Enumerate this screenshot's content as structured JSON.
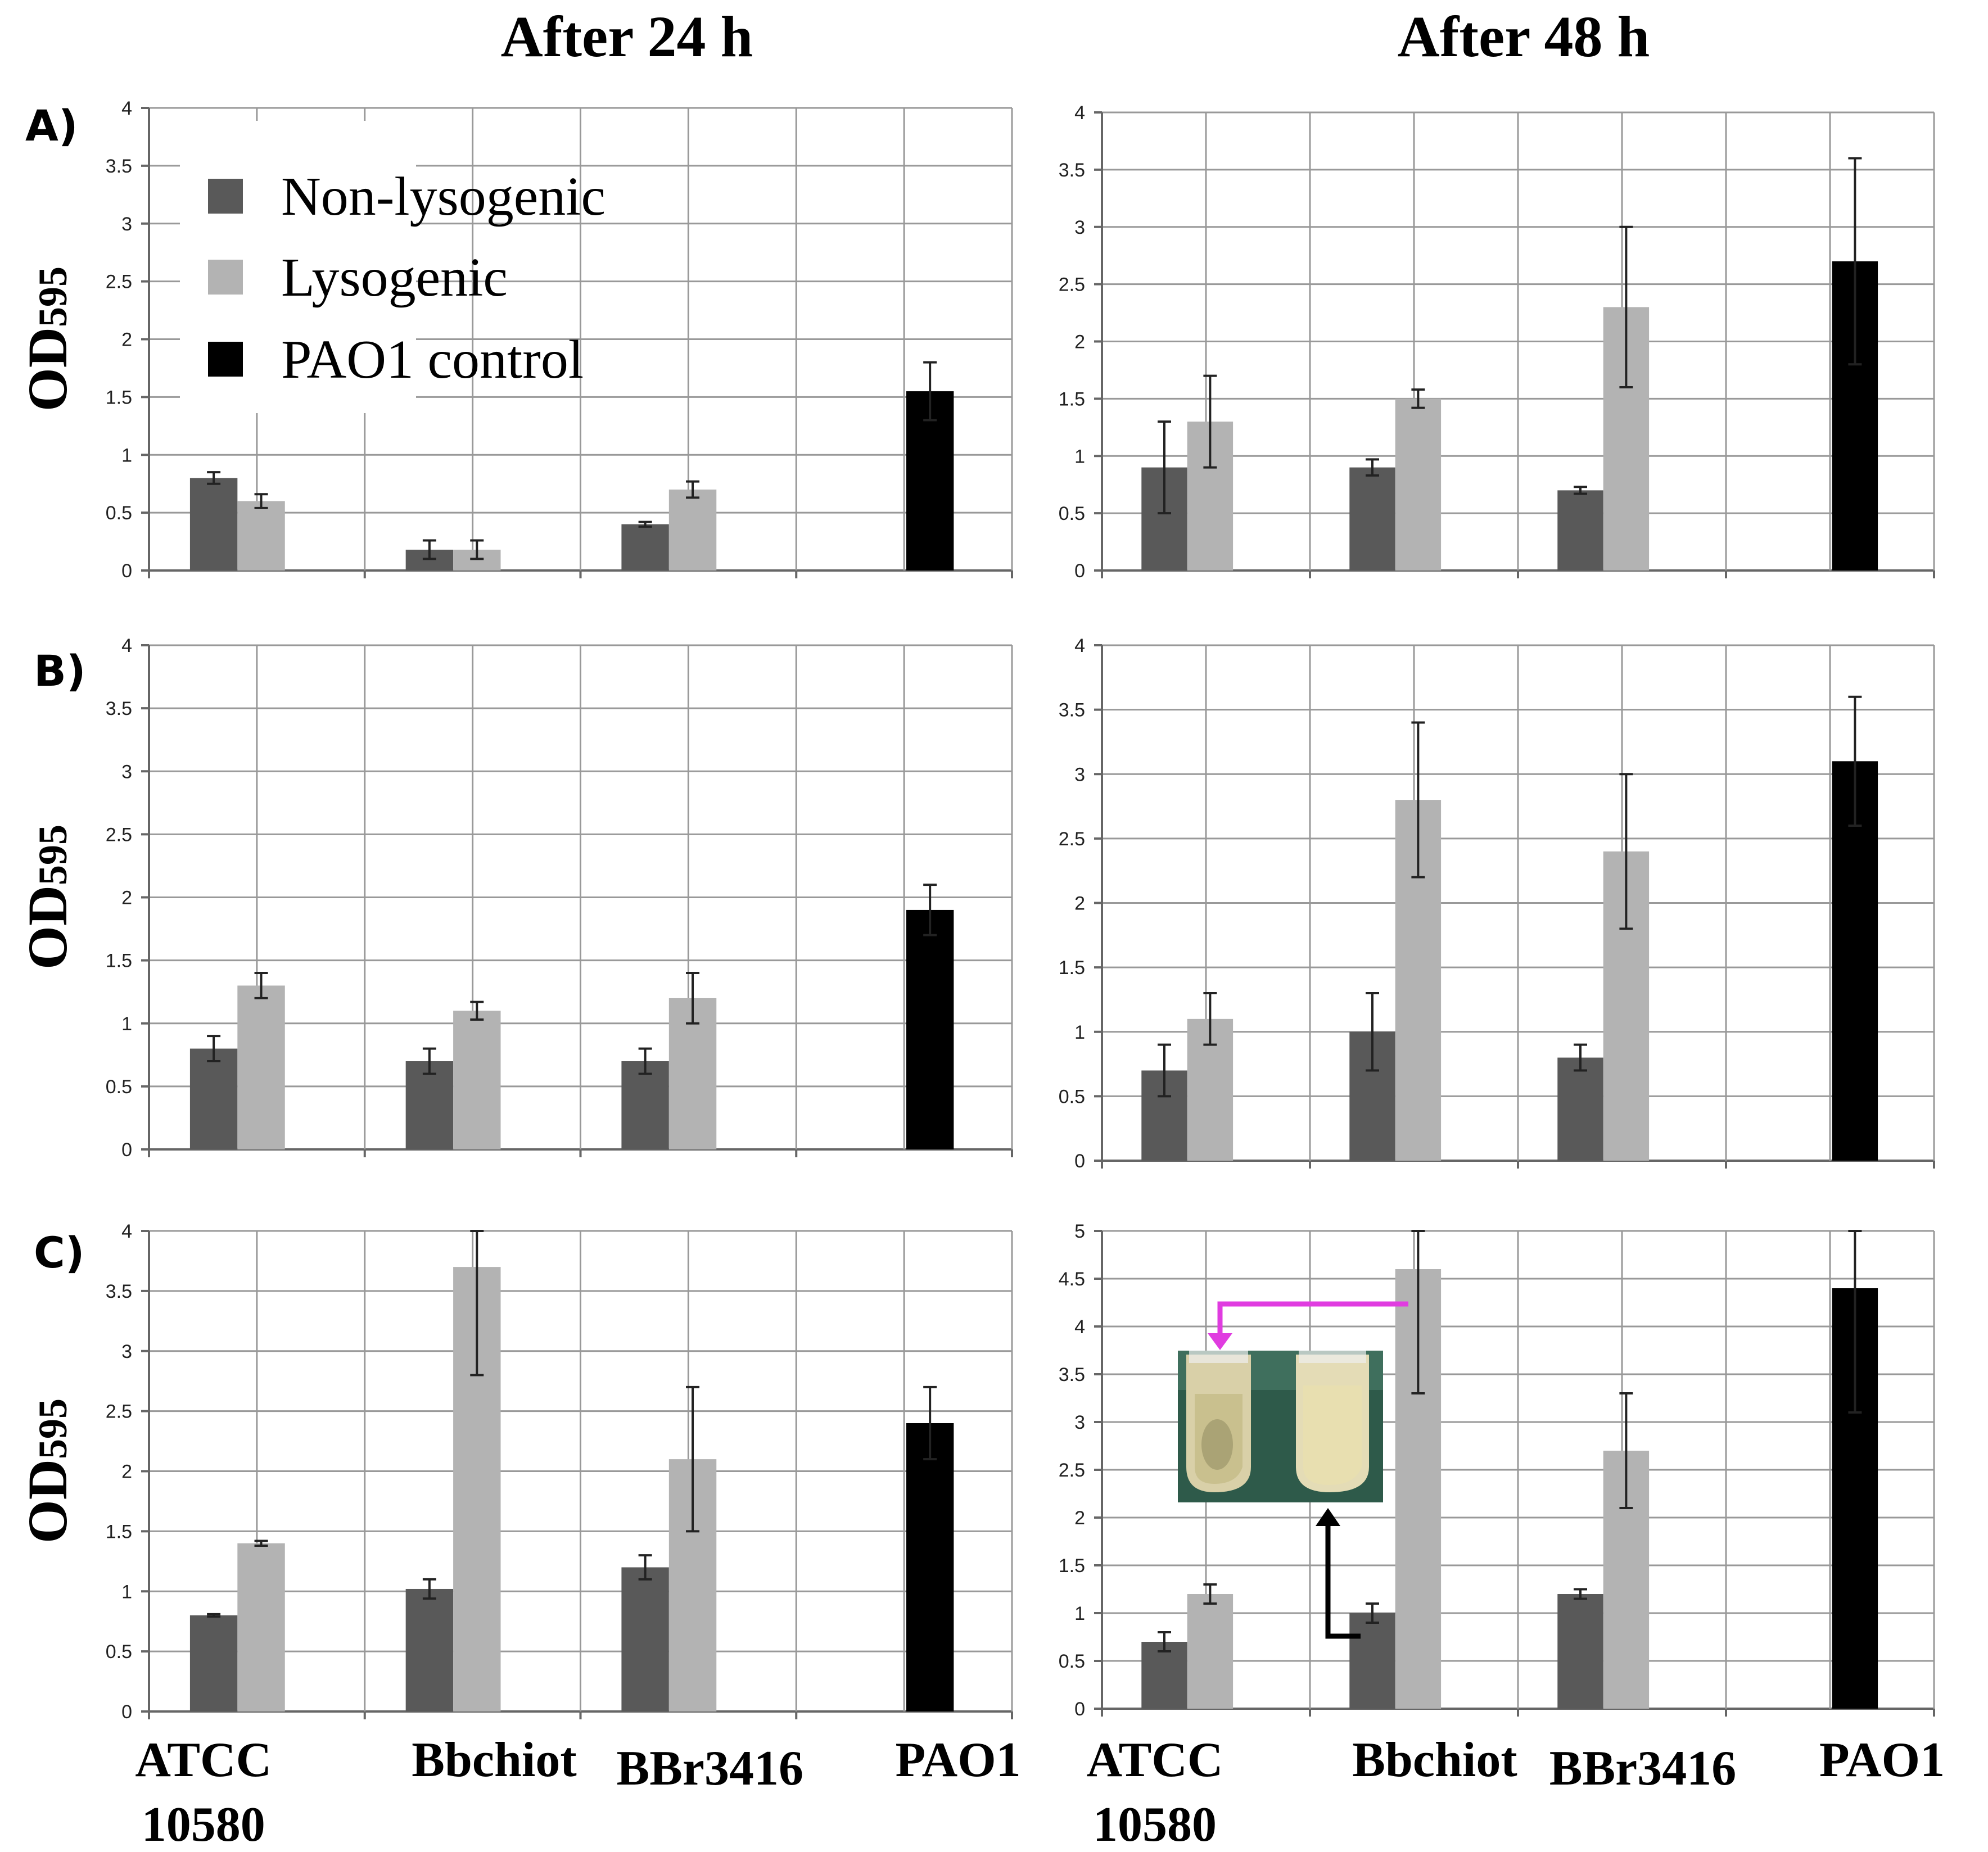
{
  "columns": [
    "After 24 h",
    "After 48 h"
  ],
  "ylabel": "OD",
  "ylabel_sub": "595",
  "categories": [
    "ATCC\n10580",
    "Bbchiot",
    "BBr3416",
    "PAO1"
  ],
  "legend": [
    {
      "name": "Non-lysogenic",
      "color": "#595959"
    },
    {
      "name": "Lysogenic",
      "color": "#b3b3b3"
    },
    {
      "name": "PAO1 control",
      "color": "#000000"
    }
  ],
  "chart_data": [
    {
      "type": "bar",
      "panel": "A)",
      "column": "After 24 h",
      "ylim": [
        0,
        4
      ],
      "ytick_step": 0.5,
      "grid": true,
      "categories": [
        "ATCC\n10580",
        "Bbchiot",
        "BBr3416",
        "PAO1"
      ],
      "series": [
        {
          "name": "Non-lysogenic",
          "values": [
            0.8,
            0.18,
            0.4,
            null
          ],
          "errors": [
            0.05,
            0.08,
            0.02,
            null
          ]
        },
        {
          "name": "Lysogenic",
          "values": [
            0.6,
            0.18,
            0.7,
            null
          ],
          "errors": [
            0.06,
            0.08,
            0.07,
            null
          ]
        },
        {
          "name": "PAO1 control",
          "values": [
            null,
            null,
            null,
            1.55
          ],
          "errors": [
            null,
            null,
            null,
            0.25
          ]
        }
      ]
    },
    {
      "type": "bar",
      "panel": "A)",
      "column": "After 48 h",
      "ylim": [
        0,
        4
      ],
      "ytick_step": 0.5,
      "grid": true,
      "categories": [
        "ATCC\n10580",
        "Bbchiot",
        "BBr3416",
        "PAO1"
      ],
      "series": [
        {
          "name": "Non-lysogenic",
          "values": [
            0.9,
            0.9,
            0.7,
            null
          ],
          "errors": [
            0.4,
            0.07,
            0.03,
            null
          ]
        },
        {
          "name": "Lysogenic",
          "values": [
            1.3,
            1.5,
            2.3,
            null
          ],
          "errors": [
            0.4,
            0.08,
            0.7,
            null
          ]
        },
        {
          "name": "PAO1 control",
          "values": [
            null,
            null,
            null,
            2.7
          ],
          "errors": [
            null,
            null,
            null,
            0.9
          ]
        }
      ]
    },
    {
      "type": "bar",
      "panel": "B)",
      "column": "After 24 h",
      "ylim": [
        0,
        4
      ],
      "ytick_step": 0.5,
      "grid": true,
      "categories": [
        "ATCC\n10580",
        "Bbchiot",
        "BBr3416",
        "PAO1"
      ],
      "series": [
        {
          "name": "Non-lysogenic",
          "values": [
            0.8,
            0.7,
            0.7,
            null
          ],
          "errors": [
            0.1,
            0.1,
            0.1,
            null
          ]
        },
        {
          "name": "Lysogenic",
          "values": [
            1.3,
            1.1,
            1.2,
            null
          ],
          "errors": [
            0.1,
            0.07,
            0.2,
            null
          ]
        },
        {
          "name": "PAO1 control",
          "values": [
            null,
            null,
            null,
            1.9
          ],
          "errors": [
            null,
            null,
            null,
            0.2
          ]
        }
      ]
    },
    {
      "type": "bar",
      "panel": "B)",
      "column": "After 48 h",
      "ylim": [
        0,
        4
      ],
      "ytick_step": 0.5,
      "grid": true,
      "categories": [
        "ATCC\n10580",
        "Bbchiot",
        "BBr3416",
        "PAO1"
      ],
      "series": [
        {
          "name": "Non-lysogenic",
          "values": [
            0.7,
            1.0,
            0.8,
            null
          ],
          "errors": [
            0.2,
            0.3,
            0.1,
            null
          ]
        },
        {
          "name": "Lysogenic",
          "values": [
            1.1,
            2.8,
            2.4,
            null
          ],
          "errors": [
            0.2,
            0.6,
            0.6,
            null
          ]
        },
        {
          "name": "PAO1 control",
          "values": [
            null,
            null,
            null,
            3.1
          ],
          "errors": [
            null,
            null,
            null,
            0.5
          ]
        }
      ]
    },
    {
      "type": "bar",
      "panel": "C)",
      "column": "After 24 h",
      "ylim": [
        0,
        4
      ],
      "ytick_step": 0.5,
      "grid": true,
      "categories": [
        "ATCC\n10580",
        "Bbchiot",
        "BBr3416",
        "PAO1"
      ],
      "series": [
        {
          "name": "Non-lysogenic",
          "values": [
            0.8,
            1.02,
            1.2,
            null
          ],
          "errors": [
            0.01,
            0.08,
            0.1,
            null
          ]
        },
        {
          "name": "Lysogenic",
          "values": [
            1.4,
            3.7,
            2.1,
            null
          ],
          "errors": [
            0.02,
            0.9,
            0.6,
            null
          ]
        },
        {
          "name": "PAO1 control",
          "values": [
            null,
            null,
            null,
            2.4
          ],
          "errors": [
            null,
            null,
            null,
            0.3
          ]
        }
      ]
    },
    {
      "type": "bar",
      "panel": "C)",
      "column": "After 48 h",
      "ylim": [
        0,
        5
      ],
      "ytick_step": 0.5,
      "grid": true,
      "categories": [
        "ATCC\n10580",
        "Bbchiot",
        "BBr3416",
        "PAO1"
      ],
      "series": [
        {
          "name": "Non-lysogenic",
          "values": [
            0.7,
            1.0,
            1.2,
            null
          ],
          "errors": [
            0.1,
            0.1,
            0.05,
            null
          ]
        },
        {
          "name": "Lysogenic",
          "values": [
            1.2,
            4.6,
            2.7,
            null
          ],
          "errors": [
            0.1,
            1.3,
            0.6,
            null
          ]
        },
        {
          "name": "PAO1 control",
          "values": [
            null,
            null,
            null,
            4.4
          ],
          "errors": [
            null,
            null,
            null,
            1.3
          ]
        }
      ]
    }
  ],
  "inset": {
    "description_icon": "test-tube-photo-icon",
    "arrow_colors": [
      "#e03ce0",
      "#000000"
    ]
  }
}
